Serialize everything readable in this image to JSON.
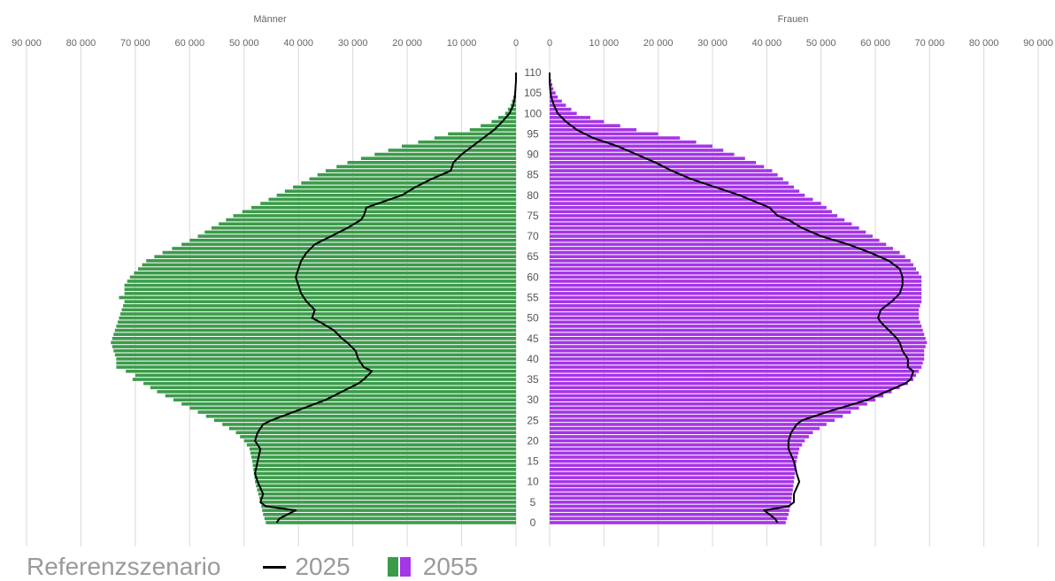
{
  "legend": {
    "scenario": "Referenzszenario",
    "line_label": "2025",
    "bar_label": "2055"
  },
  "colors": {
    "men": "#3b9b4a",
    "women": "#a535e6",
    "line": "#000000",
    "grid": "#d9d9d9"
  },
  "chart_data": {
    "type": "bar",
    "orientation": "horizontal",
    "layout": "population-pyramid",
    "panels": [
      {
        "title": "Männer",
        "side": "left"
      },
      {
        "title": "Frauen",
        "side": "right"
      }
    ],
    "xlim": [
      0,
      90000
    ],
    "x_ticks": [
      0,
      10000,
      20000,
      30000,
      40000,
      50000,
      60000,
      70000,
      80000,
      90000
    ],
    "x_tick_labels": [
      "0",
      "10 000",
      "20 000",
      "30 000",
      "40 000",
      "50 000",
      "60 000",
      "70 000",
      "80 000",
      "90 000"
    ],
    "age_range": [
      0,
      110
    ],
    "age_ticks": [
      0,
      5,
      10,
      15,
      20,
      25,
      30,
      35,
      40,
      45,
      50,
      55,
      60,
      65,
      70,
      75,
      80,
      85,
      90,
      95,
      100,
      105,
      110
    ],
    "age_tick_labels": [
      "0",
      "5",
      "10",
      "15",
      "20",
      "25",
      "30",
      "35",
      "40",
      "45",
      "50",
      "55",
      "60",
      "65",
      "70",
      "75",
      "80",
      "85",
      "90",
      "95",
      "100",
      "105",
      "110"
    ],
    "grid": true,
    "series": [
      {
        "name": "2055",
        "role": "bars",
        "sex": "men",
        "ages": [
          0,
          2,
          5,
          10,
          15,
          18,
          20,
          22,
          24,
          26,
          28,
          30,
          32,
          34,
          35,
          36,
          38,
          40,
          42,
          44,
          46,
          48,
          50,
          52,
          54,
          55,
          56,
          58,
          60,
          62,
          64,
          66,
          68,
          70,
          72,
          75,
          78,
          80,
          82,
          84,
          86,
          88,
          90,
          92,
          94,
          95,
          96,
          98,
          100,
          102,
          104,
          106,
          108,
          110
        ],
        "values": [
          46000,
          46500,
          47000,
          48000,
          48500,
          49000,
          50000,
          51500,
          54000,
          57000,
          60000,
          63000,
          66000,
          68500,
          70500,
          70000,
          73500,
          73500,
          74000,
          74500,
          74000,
          73500,
          73000,
          72500,
          72000,
          73000,
          72000,
          72000,
          71000,
          69500,
          68000,
          65000,
          61500,
          58500,
          56000,
          52000,
          47000,
          44000,
          41000,
          38000,
          35000,
          31000,
          26000,
          21000,
          15000,
          12500,
          8500,
          4500,
          2000,
          1000,
          500,
          200,
          100,
          0
        ]
      },
      {
        "name": "2055",
        "role": "bars",
        "sex": "women",
        "ages": [
          0,
          2,
          5,
          10,
          15,
          18,
          20,
          22,
          24,
          26,
          28,
          30,
          32,
          34,
          35,
          36,
          38,
          40,
          42,
          44,
          46,
          48,
          50,
          52,
          54,
          56,
          58,
          60,
          62,
          64,
          66,
          68,
          70,
          72,
          75,
          78,
          80,
          82,
          84,
          86,
          88,
          90,
          92,
          94,
          95,
          96,
          98,
          100,
          102,
          104,
          106,
          108,
          110
        ],
        "values": [
          43500,
          44000,
          44500,
          45000,
          45500,
          46000,
          47000,
          48500,
          51000,
          54000,
          57000,
          60000,
          63000,
          66000,
          67000,
          67500,
          68500,
          69000,
          69000,
          69500,
          69000,
          68500,
          68000,
          68000,
          68500,
          68500,
          68500,
          68500,
          67500,
          66500,
          64500,
          62000,
          59500,
          57000,
          53000,
          50000,
          47000,
          45000,
          43000,
          41000,
          38000,
          34000,
          30000,
          24000,
          20000,
          16000,
          10000,
          5000,
          3000,
          1500,
          700,
          300,
          0
        ]
      },
      {
        "name": "2025",
        "role": "line",
        "sex": "men",
        "ages": [
          0,
          1,
          2,
          3,
          4,
          5,
          7,
          10,
          12,
          15,
          18,
          20,
          22,
          24,
          25,
          27,
          29,
          30,
          32,
          34,
          35,
          37,
          38,
          40,
          42,
          44,
          45,
          47,
          49,
          50,
          52,
          54,
          56,
          58,
          60,
          62,
          64,
          66,
          68,
          70,
          72,
          74,
          75,
          77,
          80,
          82,
          84,
          86,
          88,
          90,
          92,
          94,
          96,
          98,
          100,
          102,
          104,
          106,
          108,
          110
        ],
        "values": [
          44000,
          43500,
          42000,
          40500,
          46000,
          47000,
          46500,
          47500,
          48000,
          47500,
          47000,
          48000,
          47500,
          46500,
          45000,
          41000,
          37000,
          35000,
          32000,
          29000,
          28000,
          26500,
          28000,
          29000,
          29500,
          31000,
          32000,
          33500,
          36000,
          37500,
          37000,
          38500,
          39500,
          40000,
          40500,
          40000,
          39500,
          38500,
          37000,
          34000,
          31000,
          28500,
          28000,
          27500,
          21000,
          18500,
          15500,
          12000,
          11500,
          10000,
          8000,
          6000,
          4000,
          2500,
          1200,
          500,
          200,
          100,
          0,
          0
        ]
      },
      {
        "name": "2025",
        "role": "line",
        "sex": "women",
        "ages": [
          0,
          1,
          2,
          3,
          4,
          5,
          7,
          10,
          12,
          15,
          18,
          20,
          22,
          24,
          25,
          27,
          29,
          30,
          32,
          34,
          35,
          37,
          38,
          40,
          42,
          44,
          45,
          47,
          49,
          50,
          52,
          54,
          56,
          58,
          60,
          62,
          64,
          66,
          68,
          70,
          72,
          74,
          75,
          77,
          80,
          82,
          84,
          86,
          88,
          90,
          92,
          94,
          96,
          98,
          100,
          102,
          104,
          106,
          108,
          110
        ],
        "values": [
          42000,
          41500,
          40500,
          39500,
          44000,
          45000,
          45000,
          46000,
          45500,
          45000,
          44000,
          44000,
          44500,
          45500,
          46500,
          51000,
          56000,
          58500,
          62000,
          65500,
          66500,
          67000,
          66000,
          66000,
          65000,
          64500,
          64000,
          62500,
          61000,
          60500,
          61000,
          63000,
          64500,
          65000,
          65000,
          64500,
          62500,
          59000,
          55000,
          50000,
          46500,
          44000,
          42000,
          40500,
          35000,
          30500,
          26000,
          22500,
          19500,
          16000,
          12500,
          8000,
          5000,
          3000,
          1500,
          800,
          300,
          100,
          0,
          0
        ]
      }
    ]
  }
}
